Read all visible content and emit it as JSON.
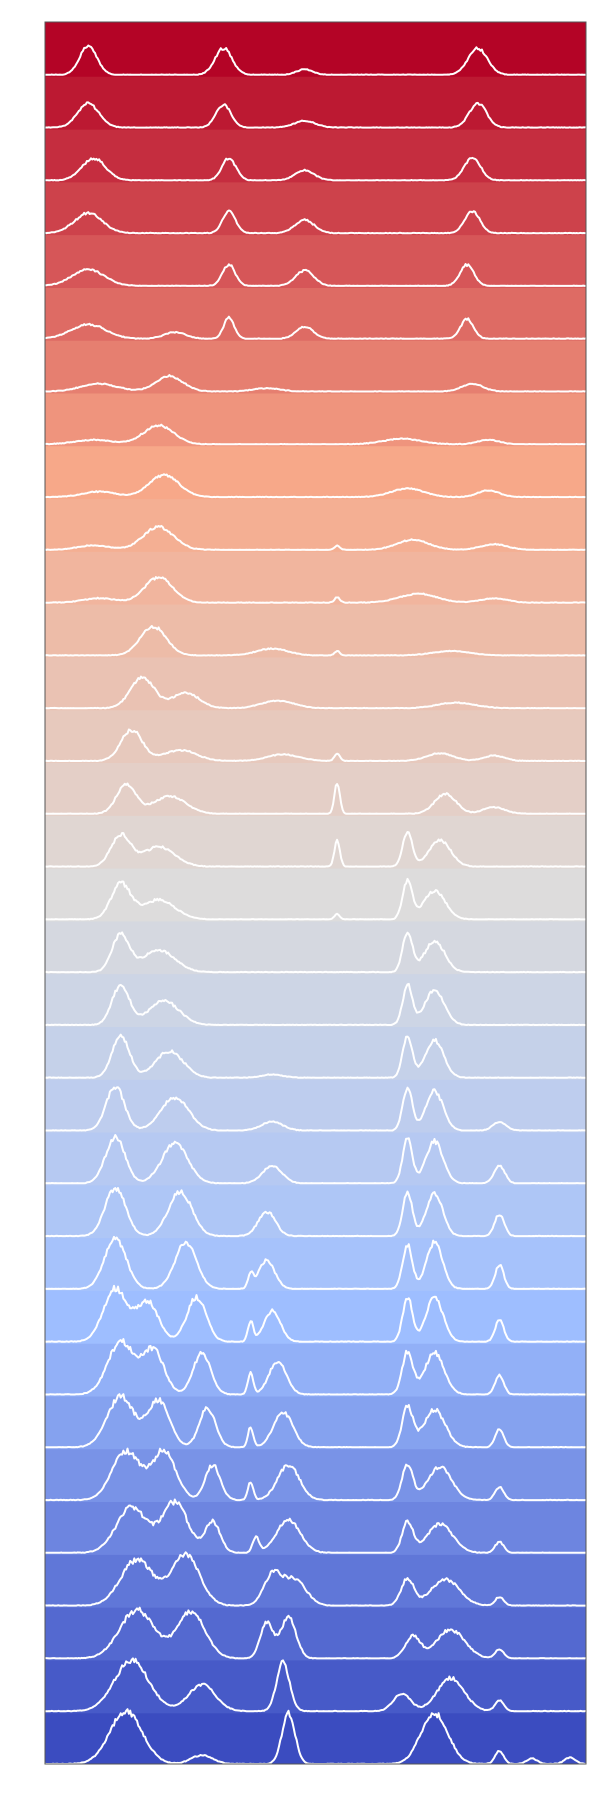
{
  "chart_data": {
    "type": "area",
    "style": "ridgeline",
    "title": "",
    "xlabel": "",
    "ylabel": "",
    "grid": false,
    "legend": "none",
    "axis_ticks_visible": false,
    "colormap": "coolwarm",
    "colormap_stops": [
      "#b40426",
      "#f7a889",
      "#dddcdc",
      "#9ebeff",
      "#3b4cc0"
    ],
    "line_color": "#ffffff",
    "frame_color": "#555555",
    "row_count": 33,
    "x_range": [
      0,
      100
    ],
    "peaks_by_row": [
      [
        [
          8,
          1.3,
          1.6
        ],
        [
          33,
          1.2,
          1.6
        ],
        [
          48,
          0.25,
          1.5
        ],
        [
          80,
          1.2,
          1.8
        ]
      ],
      [
        [
          8,
          1.1,
          2.0
        ],
        [
          33,
          1.05,
          1.4
        ],
        [
          48,
          0.3,
          2.0
        ],
        [
          80,
          1.1,
          1.6
        ]
      ],
      [
        [
          9,
          1.0,
          2.2
        ],
        [
          34,
          1.0,
          1.3
        ],
        [
          48,
          0.45,
          1.8
        ],
        [
          79,
          1.05,
          1.5
        ]
      ],
      [
        [
          8,
          0.9,
          2.6
        ],
        [
          34,
          1.0,
          1.2
        ],
        [
          48,
          0.6,
          1.8
        ],
        [
          79,
          1.0,
          1.4
        ]
      ],
      [
        [
          8,
          0.75,
          3.0
        ],
        [
          34,
          0.95,
          1.2
        ],
        [
          48,
          0.7,
          1.7
        ],
        [
          78,
          0.95,
          1.3
        ]
      ],
      [
        [
          8,
          0.65,
          3.2
        ],
        [
          24,
          0.3,
          2.0
        ],
        [
          34,
          0.95,
          1.0
        ],
        [
          48,
          0.55,
          1.6
        ],
        [
          78,
          0.9,
          1.2
        ]
      ],
      [
        [
          10,
          0.35,
          3.4
        ],
        [
          23,
          0.7,
          2.5
        ],
        [
          41,
          0.15,
          2.5
        ],
        [
          79,
          0.35,
          2.0
        ]
      ],
      [
        [
          9,
          0.2,
          3.5
        ],
        [
          21,
          0.85,
          2.8
        ],
        [
          66,
          0.25,
          3.5
        ],
        [
          82,
          0.2,
          2.0
        ]
      ],
      [
        [
          10,
          0.25,
          3.0
        ],
        [
          22,
          1.0,
          2.8
        ],
        [
          67,
          0.4,
          3.0
        ],
        [
          82,
          0.3,
          2.0
        ]
      ],
      [
        [
          9,
          0.2,
          3.0
        ],
        [
          21,
          1.05,
          2.8
        ],
        [
          54,
          0.2,
          0.5
        ],
        [
          68,
          0.45,
          3.0
        ],
        [
          83,
          0.25,
          2.5
        ]
      ],
      [
        [
          10,
          0.2,
          3.0
        ],
        [
          21,
          1.15,
          2.6
        ],
        [
          54,
          0.25,
          0.5
        ],
        [
          69,
          0.4,
          3.5
        ],
        [
          83,
          0.2,
          2.5
        ]
      ],
      [
        [
          20,
          1.3,
          2.4
        ],
        [
          42,
          0.3,
          3.0
        ],
        [
          54,
          0.2,
          0.5
        ],
        [
          75,
          0.2,
          3.5
        ]
      ],
      [
        [
          18,
          1.4,
          2.2
        ],
        [
          26,
          0.7,
          2.5
        ],
        [
          43,
          0.35,
          3.0
        ],
        [
          76,
          0.25,
          3.5
        ]
      ],
      [
        [
          16,
          1.4,
          2.0
        ],
        [
          25,
          0.5,
          3.0
        ],
        [
          44,
          0.3,
          3.0
        ],
        [
          54,
          0.35,
          0.5
        ],
        [
          73,
          0.35,
          2.5
        ],
        [
          83,
          0.25,
          2.0
        ]
      ],
      [
        [
          15,
          1.3,
          1.8
        ],
        [
          23,
          0.8,
          3.0
        ],
        [
          54,
          1.4,
          0.5
        ],
        [
          74,
          0.9,
          2.0
        ],
        [
          83,
          0.3,
          2.0
        ]
      ],
      [
        [
          14,
          1.4,
          1.8
        ],
        [
          21,
          0.9,
          3.0
        ],
        [
          54,
          1.2,
          0.5
        ],
        [
          67,
          1.6,
          0.9
        ],
        [
          73,
          1.2,
          2.0
        ]
      ],
      [
        [
          14,
          1.6,
          1.8
        ],
        [
          21,
          0.9,
          3.0
        ],
        [
          54,
          0.25,
          0.5
        ],
        [
          67,
          1.7,
          0.9
        ],
        [
          72,
          1.3,
          2.0
        ]
      ],
      [
        [
          14,
          1.7,
          1.6
        ],
        [
          21,
          1.0,
          3.0
        ],
        [
          67,
          1.8,
          0.9
        ],
        [
          72,
          1.4,
          1.9
        ]
      ],
      [
        [
          14,
          1.8,
          1.6
        ],
        [
          22,
          1.1,
          2.8
        ],
        [
          67,
          1.8,
          0.9
        ],
        [
          72,
          1.6,
          1.8
        ]
      ],
      [
        [
          14,
          1.9,
          1.6
        ],
        [
          23,
          1.2,
          2.6
        ],
        [
          42,
          0.15,
          2.0
        ],
        [
          67,
          1.9,
          0.9
        ],
        [
          72,
          1.7,
          1.7
        ]
      ],
      [
        [
          13,
          2.0,
          1.7
        ],
        [
          24,
          1.5,
          2.6
        ],
        [
          42,
          0.4,
          2.0
        ],
        [
          67,
          1.9,
          0.9
        ],
        [
          72,
          1.8,
          1.6
        ],
        [
          84,
          0.4,
          1.2
        ]
      ],
      [
        [
          13,
          2.1,
          1.8
        ],
        [
          24,
          1.8,
          2.4
        ],
        [
          42,
          0.8,
          1.8
        ],
        [
          67,
          2.0,
          0.9
        ],
        [
          72,
          1.9,
          1.6
        ],
        [
          84,
          0.8,
          1.0
        ]
      ],
      [
        [
          13,
          2.2,
          1.9
        ],
        [
          25,
          2.0,
          2.2
        ],
        [
          41,
          1.1,
          1.6
        ],
        [
          67,
          2.0,
          0.9
        ],
        [
          72,
          2.0,
          1.5
        ],
        [
          84,
          1.0,
          0.9
        ]
      ],
      [
        [
          13,
          2.3,
          2.0
        ],
        [
          26,
          2.1,
          2.0
        ],
        [
          38,
          0.6,
          0.5
        ],
        [
          41,
          1.3,
          1.5
        ],
        [
          67,
          2.0,
          0.9
        ],
        [
          72,
          2.1,
          1.5
        ],
        [
          84,
          1.1,
          0.8
        ]
      ],
      [
        [
          13,
          2.4,
          2.2
        ],
        [
          19,
          1.8,
          2.0
        ],
        [
          28,
          2.0,
          1.8
        ],
        [
          38,
          0.9,
          0.5
        ],
        [
          42,
          1.4,
          1.5
        ],
        [
          67,
          2.0,
          0.9
        ],
        [
          72,
          2.0,
          1.6
        ],
        [
          84,
          1.0,
          0.8
        ]
      ],
      [
        [
          14,
          2.4,
          2.4
        ],
        [
          20,
          2.0,
          2.0
        ],
        [
          29,
          1.9,
          1.6
        ],
        [
          38,
          1.0,
          0.5
        ],
        [
          43,
          1.5,
          1.6
        ],
        [
          67,
          1.9,
          1.0
        ],
        [
          72,
          1.9,
          1.8
        ],
        [
          84,
          0.9,
          0.8
        ]
      ],
      [
        [
          14,
          2.3,
          2.5
        ],
        [
          21,
          2.1,
          2.0
        ],
        [
          30,
          1.8,
          1.5
        ],
        [
          38,
          0.9,
          0.5
        ],
        [
          44,
          1.6,
          1.8
        ],
        [
          67,
          1.8,
          1.0
        ],
        [
          72,
          1.7,
          2.0
        ],
        [
          84,
          0.8,
          0.8
        ]
      ],
      [
        [
          15,
          2.2,
          2.6
        ],
        [
          22,
          2.2,
          2.2
        ],
        [
          31,
          1.6,
          1.4
        ],
        [
          38,
          0.8,
          0.5
        ],
        [
          45,
          1.6,
          2.0
        ],
        [
          67,
          1.6,
          1.0
        ],
        [
          73,
          1.5,
          2.2
        ],
        [
          84,
          0.6,
          0.8
        ]
      ],
      [
        [
          16,
          2.1,
          2.8
        ],
        [
          24,
          2.3,
          2.4
        ],
        [
          31,
          1.4,
          1.4
        ],
        [
          39,
          0.7,
          0.6
        ],
        [
          45,
          1.5,
          2.2
        ],
        [
          67,
          1.4,
          1.0
        ],
        [
          73,
          1.3,
          2.4
        ],
        [
          84,
          0.5,
          0.8
        ]
      ],
      [
        [
          17,
          2.1,
          3.0
        ],
        [
          26,
          2.3,
          2.6
        ],
        [
          42,
          1.3,
          1.6
        ],
        [
          46,
          1.2,
          2.2
        ],
        [
          67,
          1.2,
          1.2
        ],
        [
          74,
          1.2,
          2.6
        ],
        [
          84,
          0.4,
          0.8
        ]
      ],
      [
        [
          17,
          2.2,
          3.2
        ],
        [
          27,
          2.1,
          2.6
        ],
        [
          41,
          1.6,
          1.2
        ],
        [
          45,
          1.9,
          1.4
        ],
        [
          68,
          1.0,
          1.4
        ],
        [
          75,
          1.3,
          2.6
        ],
        [
          84,
          0.4,
          0.8
        ]
      ],
      [
        [
          16,
          2.3,
          3.2
        ],
        [
          29,
          1.2,
          2.5
        ],
        [
          44,
          2.2,
          1.2
        ],
        [
          66,
          0.8,
          1.6
        ],
        [
          75,
          1.5,
          2.5
        ],
        [
          84,
          0.5,
          0.8
        ]
      ],
      [
        [
          15,
          2.4,
          3.0
        ],
        [
          29,
          0.4,
          2.0
        ],
        [
          45,
          2.3,
          1.2
        ],
        [
          72,
          2.3,
          2.5
        ],
        [
          84,
          0.6,
          0.8
        ],
        [
          90,
          0.25,
          1.0
        ],
        [
          97,
          0.3,
          1.0
        ]
      ]
    ]
  }
}
